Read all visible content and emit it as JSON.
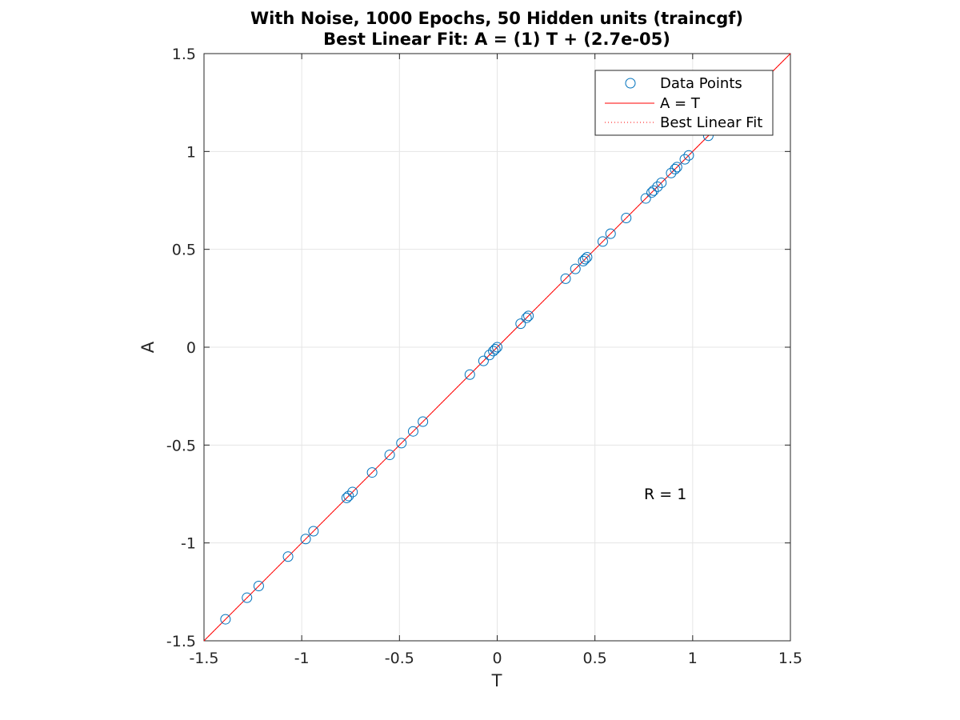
{
  "chart_data": {
    "type": "scatter",
    "title": "With Noise, 1000 Epochs, 50 Hidden units (traincgf)",
    "subtitle": "Best Linear Fit:  A = (1) T + (2.7e-05)",
    "xlabel": "T",
    "ylabel": "A",
    "xlim": [
      -1.5,
      1.5
    ],
    "ylim": [
      -1.5,
      1.5
    ],
    "x_ticks": [
      -1.5,
      -1,
      -0.5,
      0,
      0.5,
      1,
      1.5
    ],
    "y_ticks": [
      -1.5,
      -1,
      -0.5,
      0,
      0.5,
      1,
      1.5
    ],
    "x_tick_labels": [
      "-1.5",
      "-1",
      "-0.5",
      "0",
      "0.5",
      "1",
      "1.5"
    ],
    "y_tick_labels": [
      "-1.5",
      "-1",
      "-0.5",
      "0",
      "0.5",
      "1",
      "1.5"
    ],
    "grid": true,
    "legend_position": "top-right",
    "annotation": "R = 1",
    "series": [
      {
        "name": "Data Points",
        "marker": "circle",
        "color": "#0072bd",
        "points": [
          [
            -1.39,
            -1.39
          ],
          [
            -1.28,
            -1.28
          ],
          [
            -1.22,
            -1.22
          ],
          [
            -1.07,
            -1.07
          ],
          [
            -0.98,
            -0.98
          ],
          [
            -0.94,
            -0.94
          ],
          [
            -0.77,
            -0.77
          ],
          [
            -0.76,
            -0.76
          ],
          [
            -0.74,
            -0.74
          ],
          [
            -0.64,
            -0.64
          ],
          [
            -0.55,
            -0.55
          ],
          [
            -0.49,
            -0.49
          ],
          [
            -0.43,
            -0.43
          ],
          [
            -0.38,
            -0.38
          ],
          [
            -0.14,
            -0.14
          ],
          [
            -0.07,
            -0.07
          ],
          [
            -0.04,
            -0.04
          ],
          [
            -0.02,
            -0.02
          ],
          [
            -0.01,
            -0.01
          ],
          [
            0.0,
            0.0
          ],
          [
            0.12,
            0.12
          ],
          [
            0.15,
            0.15
          ],
          [
            0.16,
            0.16
          ],
          [
            0.35,
            0.35
          ],
          [
            0.4,
            0.4
          ],
          [
            0.44,
            0.44
          ],
          [
            0.45,
            0.45
          ],
          [
            0.46,
            0.46
          ],
          [
            0.54,
            0.54
          ],
          [
            0.58,
            0.58
          ],
          [
            0.66,
            0.66
          ],
          [
            0.76,
            0.76
          ],
          [
            0.79,
            0.79
          ],
          [
            0.8,
            0.8
          ],
          [
            0.82,
            0.82
          ],
          [
            0.84,
            0.84
          ],
          [
            0.89,
            0.89
          ],
          [
            0.91,
            0.91
          ],
          [
            0.92,
            0.92
          ],
          [
            0.96,
            0.96
          ],
          [
            0.98,
            0.98
          ],
          [
            1.08,
            1.08
          ]
        ]
      },
      {
        "name": "A = T",
        "style": "solid-line",
        "color": "#ff0000",
        "points": [
          [
            -1.5,
            -1.5
          ],
          [
            1.5,
            1.5
          ]
        ]
      },
      {
        "name": "Best Linear Fit",
        "style": "dotted-line",
        "color": "#ff0000",
        "slope": 1,
        "intercept": 2.7e-05,
        "points": [
          [
            -1.5,
            -1.499973
          ],
          [
            1.5,
            1.500027
          ]
        ]
      }
    ]
  },
  "colors": {
    "marker": "#0072bd",
    "identity_line": "#ff0000",
    "fit_line": "#ff0000",
    "grid": "#e5e5e5",
    "axes": "#262626"
  }
}
